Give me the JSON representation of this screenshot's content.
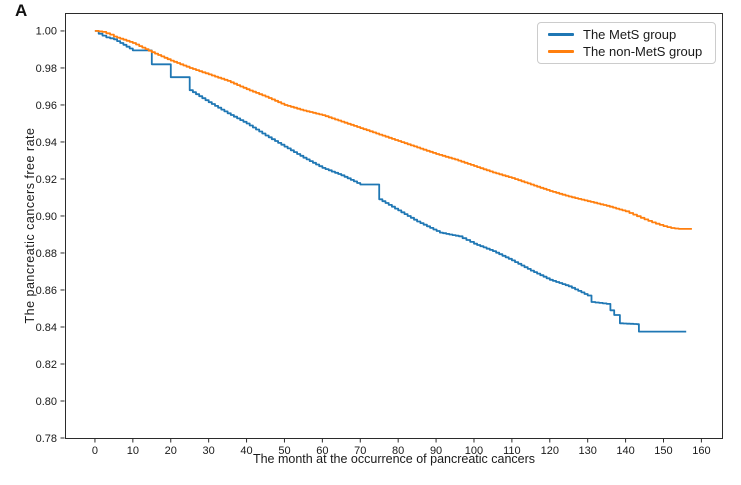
{
  "panel_label": "A",
  "chart_data": {
    "type": "line",
    "chart_style": "kaplan_meier_step",
    "title": "",
    "xlabel": "The month at the occurrence of pancreatic cancers",
    "ylabel": "The pancreatic cancers free rate",
    "xlim": [
      -7.9,
      165.7
    ],
    "ylim": [
      0.78,
      1.0097
    ],
    "grid": false,
    "xticks": [
      0,
      10,
      20,
      30,
      40,
      50,
      60,
      70,
      80,
      90,
      100,
      110,
      120,
      130,
      140,
      150,
      160
    ],
    "xtick_labels": [
      "0",
      "10",
      "20",
      "30",
      "40",
      "50",
      "60",
      "70",
      "80",
      "90",
      "100",
      "110",
      "120",
      "130",
      "140",
      "150",
      "160"
    ],
    "yticks": [
      1.0,
      0.98,
      0.96,
      0.94,
      0.92,
      0.9,
      0.88,
      0.86,
      0.84,
      0.82,
      0.8,
      0.78
    ],
    "ytick_labels": [
      "1.00",
      "0.98",
      "0.96",
      "0.94",
      "0.92",
      "0.90",
      "0.88",
      "0.86",
      "0.84",
      "0.82",
      "0.80",
      "0.78"
    ],
    "legend": {
      "position": "upper right",
      "entries": [
        {
          "label": "The MetS group",
          "color": "#1f77b4"
        },
        {
          "label": "The non-MetS group",
          "color": "#ff7f0e"
        }
      ]
    },
    "series": [
      {
        "name": "The MetS group",
        "color": "#1f77b4",
        "points": [
          [
            0,
            1.0
          ],
          [
            1,
            0.9985
          ],
          [
            3,
            0.9965
          ],
          [
            5,
            0.9955
          ],
          [
            10,
            0.9895
          ],
          [
            15,
            0.982
          ],
          [
            20,
            0.975
          ],
          [
            25,
            0.968
          ],
          [
            30,
            0.9615
          ],
          [
            35,
            0.9555
          ],
          [
            40,
            0.95
          ],
          [
            45,
            0.9435
          ],
          [
            50,
            0.9375
          ],
          [
            55,
            0.9315
          ],
          [
            60,
            0.926
          ],
          [
            65,
            0.922
          ],
          [
            70,
            0.917
          ],
          [
            75,
            0.909
          ],
          [
            80,
            0.903
          ],
          [
            85,
            0.897
          ],
          [
            91,
            0.891
          ],
          [
            96,
            0.889
          ],
          [
            100,
            0.885
          ],
          [
            105,
            0.881
          ],
          [
            110,
            0.876
          ],
          [
            115,
            0.8705
          ],
          [
            120,
            0.8655
          ],
          [
            125,
            0.862
          ],
          [
            130,
            0.857
          ],
          [
            131,
            0.8535
          ],
          [
            135,
            0.8525
          ],
          [
            136,
            0.849
          ],
          [
            137,
            0.8465
          ],
          [
            138.5,
            0.842
          ],
          [
            143,
            0.8415
          ],
          [
            143.5,
            0.8375
          ],
          [
            156,
            0.8375
          ]
        ]
      },
      {
        "name": "The non-MetS group",
        "color": "#ff7f0e",
        "points": [
          [
            0,
            1.0
          ],
          [
            2,
            0.9995
          ],
          [
            4,
            0.998
          ],
          [
            5,
            0.997
          ],
          [
            10,
            0.9935
          ],
          [
            15,
            0.9885
          ],
          [
            20,
            0.984
          ],
          [
            25,
            0.98
          ],
          [
            30,
            0.9765
          ],
          [
            35,
            0.973
          ],
          [
            40,
            0.9685
          ],
          [
            45,
            0.9645
          ],
          [
            50,
            0.96
          ],
          [
            55,
            0.957
          ],
          [
            60,
            0.9545
          ],
          [
            65,
            0.951
          ],
          [
            70,
            0.9475
          ],
          [
            75,
            0.944
          ],
          [
            80,
            0.9405
          ],
          [
            85,
            0.937
          ],
          [
            90,
            0.9335
          ],
          [
            95,
            0.9305
          ],
          [
            100,
            0.927
          ],
          [
            105,
            0.9235
          ],
          [
            110,
            0.9205
          ],
          [
            115,
            0.917
          ],
          [
            120,
            0.9135
          ],
          [
            125,
            0.9105
          ],
          [
            130,
            0.908
          ],
          [
            135,
            0.9055
          ],
          [
            140,
            0.9025
          ],
          [
            144,
            0.899
          ],
          [
            147,
            0.8965
          ],
          [
            150,
            0.8945
          ],
          [
            152,
            0.8935
          ],
          [
            154,
            0.893
          ],
          [
            157.5,
            0.893
          ]
        ]
      }
    ]
  }
}
